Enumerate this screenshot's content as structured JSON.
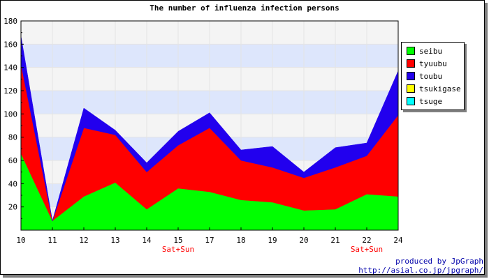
{
  "chart_data": {
    "type": "area",
    "stacked": true,
    "title": "The number of influenza infection persons",
    "categories": [
      "10",
      "11",
      "12",
      "13",
      "14",
      "15",
      "17",
      "18",
      "19",
      "20",
      "21",
      "22",
      "24"
    ],
    "category_annotations": [
      {
        "category": "15",
        "text": "Sat+Sun"
      },
      {
        "category": "22",
        "text": "Sat+Sun"
      }
    ],
    "series": [
      {
        "name": "seibu",
        "color": "#00ff00",
        "values": [
          66,
          8,
          29,
          41,
          18,
          36,
          33,
          26,
          24,
          17,
          18,
          31,
          29
        ]
      },
      {
        "name": "tyuubu",
        "color": "#ff0000",
        "values": [
          77,
          0,
          59,
          41,
          32,
          37,
          55,
          34,
          30,
          28,
          36,
          33,
          70
        ]
      },
      {
        "name": "toubu",
        "color": "#2200ee",
        "values": [
          24,
          0,
          17,
          4,
          8,
          12,
          13,
          9,
          18,
          5,
          17,
          11,
          38
        ]
      },
      {
        "name": "tsukigase",
        "color": "#ffff00",
        "values": [
          0,
          0,
          0,
          0,
          0,
          0,
          0,
          0,
          0,
          0,
          0,
          0,
          0
        ]
      },
      {
        "name": "tsuge",
        "color": "#00ffff",
        "values": [
          0,
          0,
          0,
          0,
          0,
          0,
          0,
          0,
          0,
          0,
          0,
          0,
          0
        ]
      }
    ],
    "ylim": [
      0,
      180
    ],
    "yticks": [
      20,
      40,
      60,
      80,
      100,
      120,
      140,
      160,
      180
    ],
    "grid": true,
    "band_colors": [
      "#f4f4f4",
      "#dde6fc"
    ],
    "legend_position": "right"
  },
  "credit": {
    "line1": "produced by JpGraph",
    "line2": "http://asial.co.jp/jpgraph/"
  }
}
